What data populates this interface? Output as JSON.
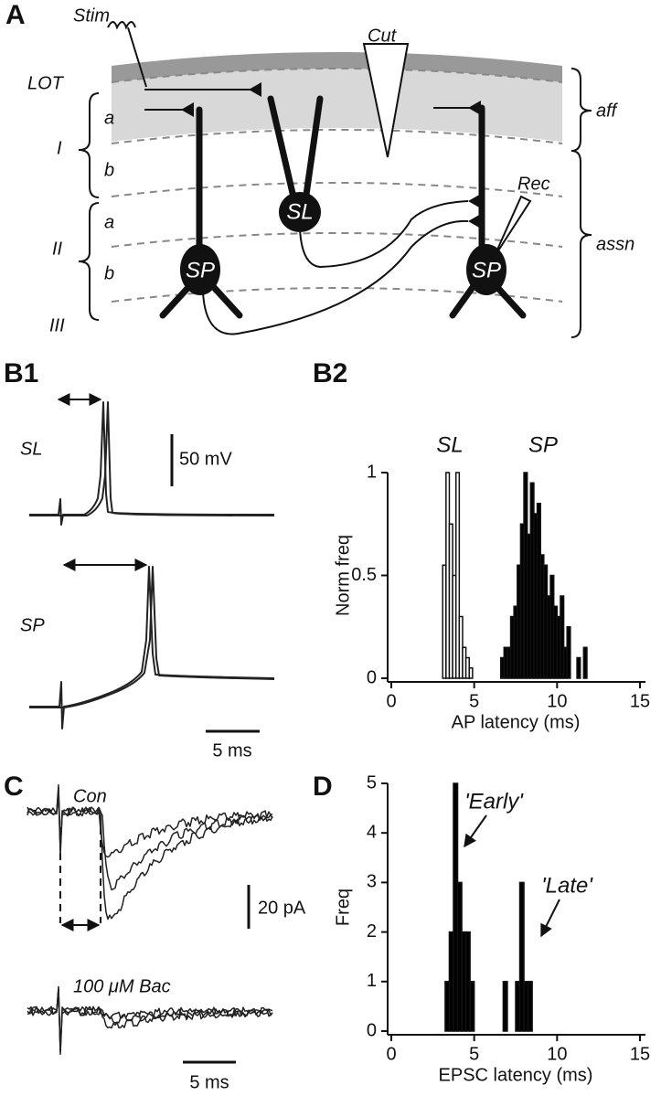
{
  "panel_labels": {
    "A": "A",
    "B1": "B1",
    "B2": "B2",
    "C": "C",
    "D": "D"
  },
  "diagram": {
    "stim": "Stim",
    "cut": "Cut",
    "lot": "LOT",
    "layer_I": "I",
    "layer_Ia": "a",
    "layer_Ib": "b",
    "layer_II": "II",
    "layer_IIa": "a",
    "layer_IIb": "b",
    "layer_III": "III",
    "sl_cell": "SL",
    "sp_cell_left": "SP",
    "sp_cell_right": "SP",
    "rec": "Rec",
    "aff": "aff",
    "assn": "assn"
  },
  "traces_b1": {
    "sl": "SL",
    "sp": "SP",
    "v_scale": "50 mV",
    "t_scale": "5 ms"
  },
  "traces_c": {
    "con": "Con",
    "bac": "100 μM Bac",
    "i_scale": "20 pA",
    "t_scale": "5 ms"
  },
  "chart_data": [
    {
      "type": "histogram",
      "xlabel": "AP latency (ms)",
      "ylabel": "Norm freq",
      "annotations": [
        "SL",
        "SP"
      ],
      "xlim": [
        0,
        15
      ],
      "xticks": [
        0,
        5,
        10,
        15
      ],
      "ylim": [
        0,
        1
      ],
      "yticks": [
        0,
        0.5,
        1
      ],
      "series": [
        {
          "name": "SL",
          "color": "#ffffff",
          "bins": [
            3.1,
            3.3,
            3.5,
            3.7,
            3.9,
            4.1,
            4.3,
            4.5,
            4.7,
            4.9
          ],
          "values": [
            0.55,
            1,
            0.75,
            0.5,
            1,
            0.3,
            0.15,
            0.1,
            0.05
          ]
        },
        {
          "name": "SP",
          "color": "#000000",
          "bins": [
            6.6,
            6.8,
            7.0,
            7.2,
            7.4,
            7.6,
            7.8,
            8.0,
            8.2,
            8.4,
            8.6,
            8.8,
            9.0,
            9.2,
            9.4,
            9.6,
            9.8,
            10.0,
            10.2,
            10.4,
            10.6,
            10.8,
            11.0,
            11.2,
            11.4,
            11.6,
            11.8
          ],
          "values": [
            0.1,
            0.15,
            0.15,
            0.3,
            0.35,
            0.55,
            0.75,
            1,
            0.7,
            0.95,
            0.8,
            0.85,
            0.6,
            0.55,
            0.4,
            0.5,
            0.35,
            0.3,
            0.4,
            0.15,
            0.25,
            0,
            0,
            0.1,
            0,
            0.15
          ]
        }
      ]
    },
    {
      "type": "histogram",
      "xlabel": "EPSC latency (ms)",
      "ylabel": "Freq",
      "annotations": [
        "'Early'",
        "'Late'"
      ],
      "xlim": [
        0,
        15
      ],
      "xticks": [
        0,
        5,
        10,
        15
      ],
      "ylim": [
        0,
        5
      ],
      "yticks": [
        0,
        1,
        2,
        3,
        4,
        5
      ],
      "series": [
        {
          "color": "#000000",
          "bins": [
            3.25,
            3.5,
            3.75,
            4.0,
            4.25,
            4.5,
            4.75,
            5.0,
            5.25,
            5.5,
            5.75,
            6.0,
            6.25,
            6.5,
            6.75,
            7.0,
            7.25,
            7.5,
            7.75,
            8.0,
            8.25,
            8.5
          ],
          "values": [
            1,
            2,
            5,
            3,
            2,
            2,
            1,
            0,
            0,
            0,
            0,
            0,
            0,
            0,
            1,
            0,
            0,
            1,
            3,
            1,
            1
          ]
        }
      ]
    }
  ]
}
